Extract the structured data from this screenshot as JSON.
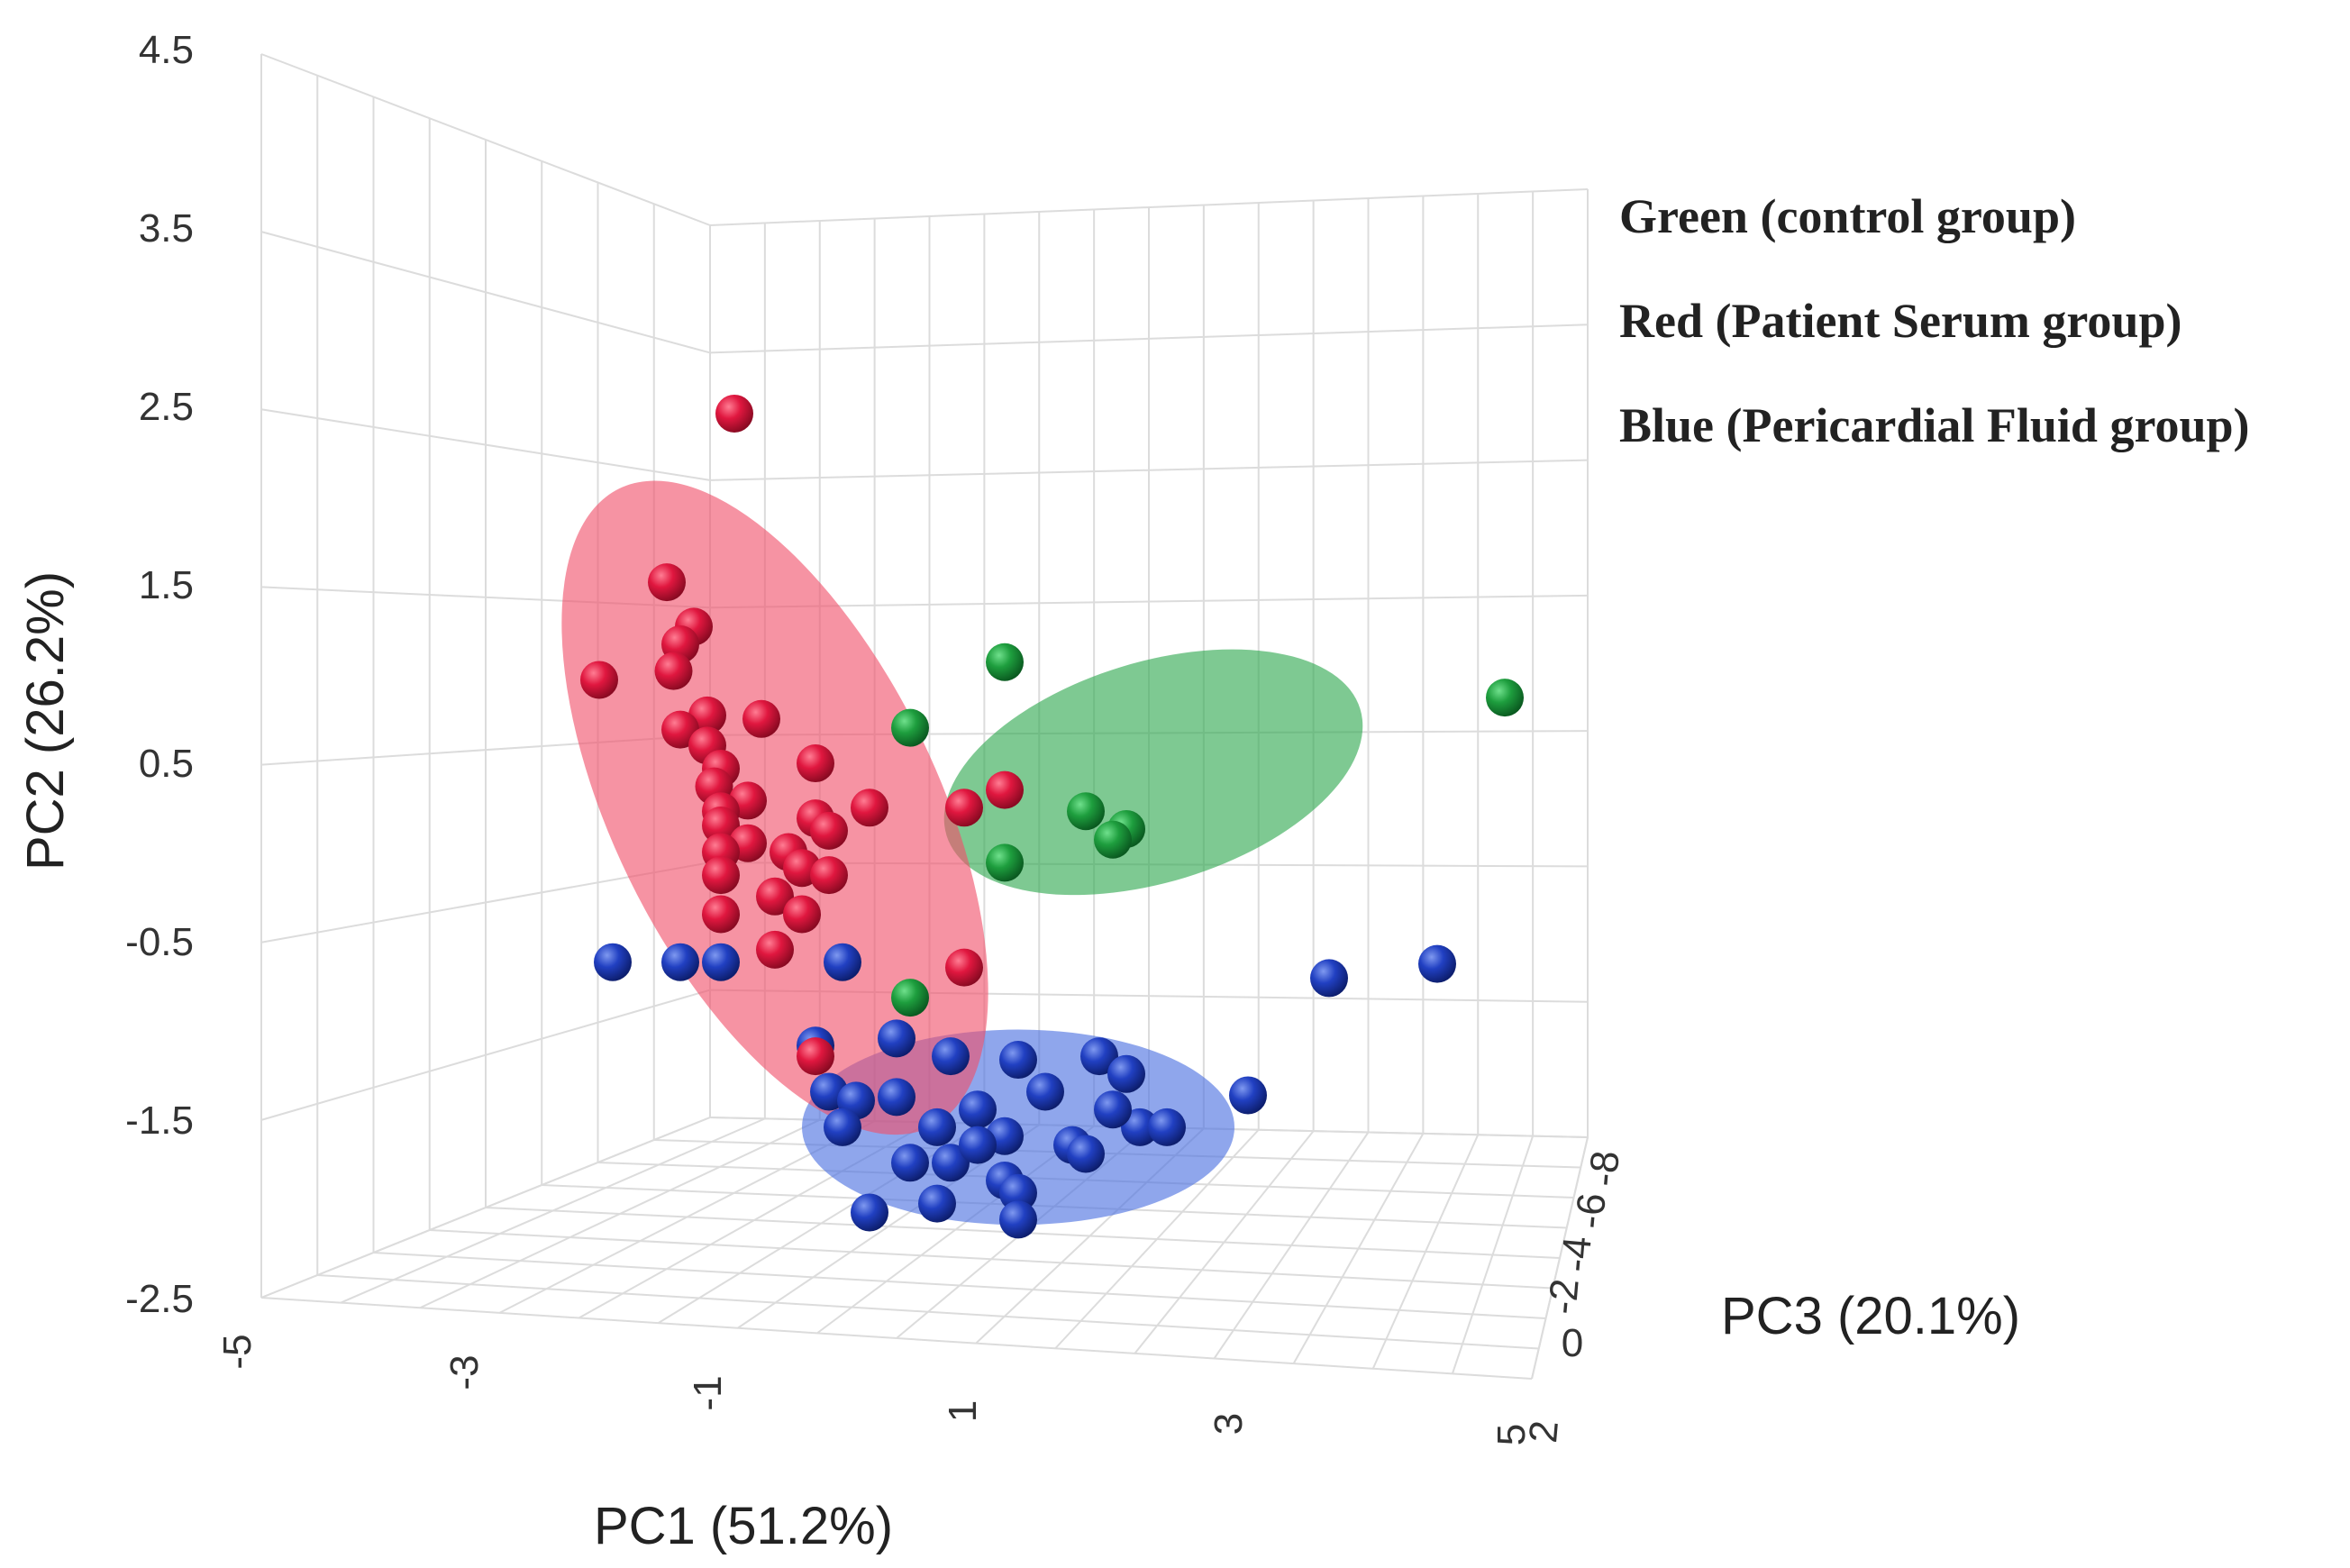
{
  "chart_data": {
    "type": "scatter",
    "title": "",
    "axes": {
      "pc1": {
        "label": "PC1 (51.2%)",
        "ticks": [
          "-5",
          "-3",
          "-1",
          "1",
          "3",
          "5"
        ]
      },
      "pc2": {
        "label": "PC2 (26.2%)",
        "ticks": [
          "4.5",
          "3.5",
          "2.5",
          "1.5",
          "0.5",
          "-0.5",
          "-1.5",
          "-2.5"
        ],
        "ylim": [
          -2.5,
          4.5
        ]
      },
      "pc3": {
        "label": "PC3 (20.1%)",
        "ticks": [
          "-8",
          "-6",
          "-4",
          "-2",
          "0",
          "2"
        ]
      }
    },
    "legend": [
      {
        "label": "Green (control group)",
        "color": "#1e9e3e"
      },
      {
        "label": "Red (Patient Serum group)",
        "color": "#e0173f"
      },
      {
        "label": "Blue (Pericardial Fluid group)",
        "color": "#2140c2"
      }
    ],
    "ellipses": [
      {
        "group": "control",
        "color": "#2ea84f",
        "pc1": 1.9,
        "pc2": 0.8,
        "rx": 1.6,
        "ry": 0.62,
        "angle": -17
      },
      {
        "group": "serum",
        "color": "#f0506a",
        "pc1": -0.9,
        "pc2": 0.6,
        "rx": 1.2,
        "ry": 2.0,
        "angle": -26
      },
      {
        "group": "pericardial",
        "color": "#4a6fe0",
        "pc1": 0.9,
        "pc2": -1.2,
        "rx": 1.6,
        "ry": 0.55,
        "angle": 0
      }
    ],
    "series": [
      {
        "name": "Green (control group)",
        "color": "#1e9e3e",
        "points": [
          [
            0.8,
            1.42
          ],
          [
            0.1,
            1.05
          ],
          [
            4.5,
            1.22
          ],
          [
            1.4,
            0.58
          ],
          [
            1.7,
            0.48
          ],
          [
            1.6,
            0.42
          ],
          [
            0.8,
            0.29
          ],
          [
            0.1,
            -0.47
          ]
        ]
      },
      {
        "name": "Red (Patient Serum group)",
        "color": "#e0173f",
        "points": [
          [
            -1.2,
            2.82
          ],
          [
            -1.7,
            1.87
          ],
          [
            -1.5,
            1.62
          ],
          [
            -1.6,
            1.52
          ],
          [
            -1.65,
            1.37
          ],
          [
            -2.2,
            1.32
          ],
          [
            -1.4,
            1.12
          ],
          [
            -1.6,
            1.04
          ],
          [
            -1.0,
            1.1
          ],
          [
            -1.4,
            0.95
          ],
          [
            -1.3,
            0.82
          ],
          [
            -1.35,
            0.72
          ],
          [
            -1.1,
            0.64
          ],
          [
            -0.6,
            0.85
          ],
          [
            -0.2,
            0.6
          ],
          [
            -1.3,
            0.58
          ],
          [
            -0.6,
            0.54
          ],
          [
            -0.5,
            0.47
          ],
          [
            -1.3,
            0.5
          ],
          [
            -1.1,
            0.4
          ],
          [
            -0.8,
            0.35
          ],
          [
            -1.3,
            0.35
          ],
          [
            -0.7,
            0.26
          ],
          [
            -0.5,
            0.22
          ],
          [
            -1.3,
            0.22
          ],
          [
            -0.9,
            0.1
          ],
          [
            -1.3,
            0.0
          ],
          [
            -0.7,
            0.0
          ],
          [
            -0.9,
            -0.2
          ],
          [
            0.5,
            0.6
          ],
          [
            0.8,
            0.7
          ],
          [
            0.5,
            -0.3
          ],
          [
            -0.6,
            -0.8
          ]
        ]
      },
      {
        "name": "Blue (Pericardial Fluid group)",
        "color": "#2140c2",
        "points": [
          [
            -2.1,
            -0.27
          ],
          [
            -1.6,
            -0.27
          ],
          [
            -1.3,
            -0.27
          ],
          [
            -0.4,
            -0.27
          ],
          [
            3.2,
            -0.36
          ],
          [
            4.0,
            -0.28
          ],
          [
            -0.6,
            -0.74
          ],
          [
            0.0,
            -0.7
          ],
          [
            0.4,
            -0.8
          ],
          [
            0.9,
            -0.82
          ],
          [
            1.5,
            -0.8
          ],
          [
            -0.5,
            -1.0
          ],
          [
            -0.3,
            -1.05
          ],
          [
            0.0,
            -1.03
          ],
          [
            0.6,
            -1.1
          ],
          [
            1.1,
            -1.0
          ],
          [
            1.7,
            -0.9
          ],
          [
            -0.4,
            -1.2
          ],
          [
            0.3,
            -1.2
          ],
          [
            0.8,
            -1.25
          ],
          [
            1.3,
            -1.3
          ],
          [
            1.8,
            -1.2
          ],
          [
            2.0,
            -1.2
          ],
          [
            2.6,
            -1.02
          ],
          [
            0.4,
            -1.4
          ],
          [
            0.1,
            -1.4
          ],
          [
            0.8,
            -1.5
          ],
          [
            0.9,
            -1.57
          ],
          [
            -0.2,
            -1.68
          ],
          [
            0.3,
            -1.63
          ],
          [
            0.9,
            -1.72
          ],
          [
            1.4,
            -1.35
          ],
          [
            0.6,
            -1.3
          ],
          [
            1.6,
            -1.1
          ]
        ]
      }
    ]
  }
}
